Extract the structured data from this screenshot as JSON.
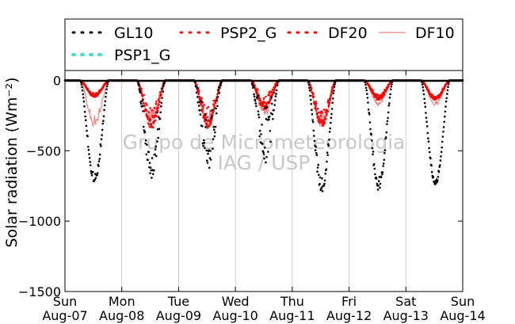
{
  "chart_data": {
    "type": "scatter",
    "ylabel": "Solar radiation (Wm⁻²)",
    "xlabel": "",
    "ylim": [
      -1500,
      70
    ],
    "yticks": [
      0,
      -500,
      -1000,
      -1500
    ],
    "xlim": [
      0,
      7
    ],
    "grid": "vertical",
    "legend_position": "top",
    "watermark": [
      "Grupo de Micrometeorologia",
      "IAG / USP"
    ],
    "x_ticks": [
      {
        "x": 0,
        "day": "Sun",
        "date": "Aug-07"
      },
      {
        "x": 1,
        "day": "Mon",
        "date": "Aug-08"
      },
      {
        "x": 2,
        "day": "Tue",
        "date": "Aug-09"
      },
      {
        "x": 3,
        "day": "Wed",
        "date": "Aug-10"
      },
      {
        "x": 4,
        "day": "Thu",
        "date": "Aug-11"
      },
      {
        "x": 5,
        "day": "Fri",
        "date": "Aug-12"
      },
      {
        "x": 6,
        "day": "Sat",
        "date": "Aug-13"
      },
      {
        "x": 7,
        "day": "Sun",
        "date": "Aug-14"
      }
    ],
    "series": [
      {
        "name": "GL10",
        "style": "dots",
        "color": "#000000",
        "days": [
          {
            "peak": -730,
            "center": 0.52,
            "noise": 0.1
          },
          {
            "peak": -700,
            "center": 0.52,
            "noise": 0.55
          },
          {
            "peak": -640,
            "center": 0.52,
            "noise": 0.65
          },
          {
            "peak": -600,
            "center": 0.52,
            "noise": 0.7
          },
          {
            "peak": -795,
            "center": 0.52,
            "noise": 0.15
          },
          {
            "peak": -785,
            "center": 0.52,
            "noise": 0.15
          },
          {
            "peak": -745,
            "center": 0.52,
            "noise": 0.05
          }
        ]
      },
      {
        "name": "PSP2_G",
        "style": "dots",
        "color": "#e31a1c",
        "days": [
          {
            "peak": -110,
            "center": 0.52,
            "noise": 0.2
          },
          {
            "peak": -330,
            "center": 0.52,
            "noise": 0.45
          },
          {
            "peak": -330,
            "center": 0.52,
            "noise": 0.45
          },
          {
            "peak": -200,
            "center": 0.52,
            "noise": 0.5
          },
          {
            "peak": -320,
            "center": 0.52,
            "noise": 0.35
          },
          {
            "peak": -130,
            "center": 0.52,
            "noise": 0.25
          },
          {
            "peak": -130,
            "center": 0.52,
            "noise": 0.2
          }
        ]
      },
      {
        "name": "DF20",
        "style": "dots",
        "color": "#ff0000",
        "days": [
          {
            "peak": -120,
            "center": 0.52,
            "noise": 0.2
          },
          {
            "peak": -350,
            "center": 0.52,
            "noise": 0.45
          },
          {
            "peak": -340,
            "center": 0.52,
            "noise": 0.45
          },
          {
            "peak": -210,
            "center": 0.52,
            "noise": 0.5
          },
          {
            "peak": -330,
            "center": 0.52,
            "noise": 0.35
          },
          {
            "peak": -140,
            "center": 0.52,
            "noise": 0.25
          },
          {
            "peak": -140,
            "center": 0.52,
            "noise": 0.2
          }
        ]
      },
      {
        "name": "DF10",
        "style": "line",
        "color": "#f08080",
        "days": [
          {
            "peak": -340,
            "center": 0.5,
            "noise": 0.3
          },
          {
            "peak": -300,
            "center": 0.52,
            "noise": 0.4
          },
          {
            "peak": -350,
            "center": 0.52,
            "noise": 0.4
          },
          {
            "peak": -260,
            "center": 0.52,
            "noise": 0.5
          },
          {
            "peak": -340,
            "center": 0.52,
            "noise": 0.35
          },
          {
            "peak": -180,
            "center": 0.52,
            "noise": 0.3
          },
          {
            "peak": -180,
            "center": 0.52,
            "noise": 0.25
          }
        ]
      },
      {
        "name": "PSP1_G",
        "style": "dots",
        "color": "#40e0d0",
        "days": []
      }
    ]
  },
  "colors": {
    "gl10": "#000000",
    "psp2_g": "#e31a1c",
    "df20": "#ff0000",
    "df10": "#f08080",
    "psp1_g": "#40e0d0",
    "watermark": "#c8c8c8",
    "grid": "#c0c0c0"
  }
}
